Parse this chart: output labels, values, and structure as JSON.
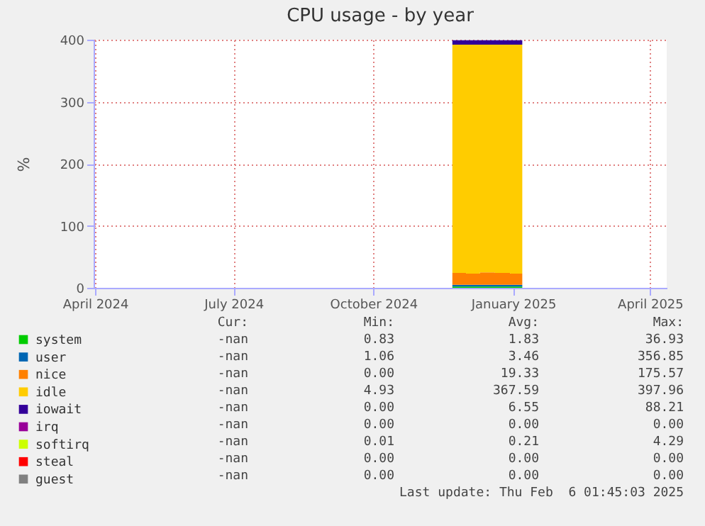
{
  "chart_data": {
    "type": "area",
    "stacked": true,
    "title": "CPU usage - by year",
    "ylabel": "%",
    "x": [
      "2024-11-22",
      "2024-12-01",
      "2024-12-10",
      "2024-12-20",
      "2024-12-30",
      "2025-01-07"
    ],
    "xlim": [
      "2024-03-31",
      "2025-04-12"
    ],
    "xticks": [
      {
        "value": "2024-04-01",
        "label": "April 2024"
      },
      {
        "value": "2024-07-01",
        "label": "July 2024"
      },
      {
        "value": "2024-10-01",
        "label": "October 2024"
      },
      {
        "value": "2025-01-01",
        "label": "January 2025"
      },
      {
        "value": "2025-04-01",
        "label": "April 2025"
      }
    ],
    "ylim": [
      0,
      400
    ],
    "yticks": [
      0,
      100,
      200,
      300,
      400
    ],
    "grid": true,
    "legend": "bottom",
    "series": [
      {
        "name": "system",
        "color": "#00cc00",
        "values": [
          2,
          2,
          2,
          2,
          2,
          2
        ]
      },
      {
        "name": "user",
        "color": "#0066b3",
        "values": [
          3,
          3,
          3,
          3,
          3,
          3
        ]
      },
      {
        "name": "nice",
        "color": "#ff8000",
        "values": [
          19,
          18,
          20,
          19,
          18,
          19
        ]
      },
      {
        "name": "idle",
        "color": "#ffcc00",
        "values": [
          368,
          369,
          367,
          368,
          369,
          368
        ]
      },
      {
        "name": "iowait",
        "color": "#330099",
        "values": [
          7,
          7,
          7,
          7,
          7,
          7
        ]
      },
      {
        "name": "irq",
        "color": "#990099",
        "values": [
          null,
          null,
          null,
          null,
          null,
          null
        ]
      },
      {
        "name": "softirq",
        "color": "#ccff00",
        "values": [
          null,
          null,
          null,
          null,
          null,
          null
        ]
      },
      {
        "name": "steal",
        "color": "#ff0000",
        "values": [
          null,
          null,
          null,
          null,
          null,
          null
        ]
      },
      {
        "name": "guest",
        "color": "#808080",
        "values": [
          null,
          null,
          null,
          null,
          null,
          null
        ]
      }
    ],
    "annotations": [
      "Cur:",
      "Min:",
      "Avg:",
      "Max:",
      "-nan",
      "0.83",
      "1.83",
      "36.93",
      "-nan",
      "1.06",
      "3.46",
      "356.85",
      "-nan",
      "0.00",
      "19.33",
      "175.57",
      "-nan",
      "4.93",
      "367.59",
      "397.96",
      "-nan",
      "0.00",
      "6.55",
      "88.21",
      "-nan",
      "0.00",
      "0.00",
      "0.00",
      "-nan",
      "0.01",
      "0.21",
      "4.29",
      "-nan",
      "0.00",
      "0.00",
      "0.00",
      "-nan",
      "0.00",
      "0.00",
      "0.00",
      "Last update: Thu Feb  6 01:45:03 2025"
    ]
  }
}
